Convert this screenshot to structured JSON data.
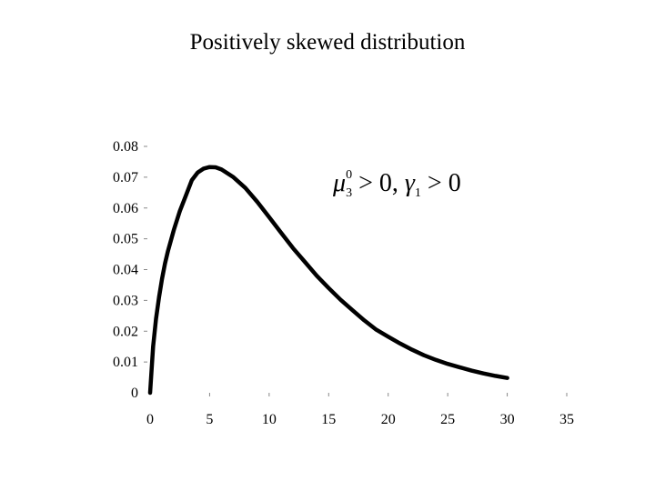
{
  "chart_data": {
    "type": "line",
    "title": "Positively skewed distribution",
    "xlabel": "",
    "ylabel": "",
    "xlim": [
      0,
      35
    ],
    "ylim": [
      0,
      0.08
    ],
    "x_ticks": [
      "0",
      "5",
      "10",
      "15",
      "20",
      "25",
      "30",
      "35"
    ],
    "y_ticks": [
      "0",
      "0.01",
      "0.02",
      "0.03",
      "0.04",
      "0.05",
      "0.06",
      "0.07",
      "0.08"
    ],
    "grid": false,
    "annotation": {
      "mu": "μ",
      "mu_sub": "3",
      "mu_sup": "0",
      "rest1": " > 0, ",
      "gamma": "γ",
      "gamma_sub": "1",
      "rest2": " > 0"
    },
    "series": [
      {
        "x": [
          0,
          0.25,
          0.5,
          0.75,
          1,
          1.25,
          1.5,
          2,
          2.5,
          3,
          3.5,
          4,
          4.5,
          5,
          5.5,
          6,
          7,
          8,
          9,
          10,
          11,
          12,
          13,
          14,
          15,
          16,
          17,
          18,
          19,
          20,
          21,
          22,
          23,
          24,
          25,
          26,
          27,
          28,
          29,
          30
        ],
        "y": [
          0,
          0.015,
          0.024,
          0.031,
          0.037,
          0.042,
          0.046,
          0.053,
          0.059,
          0.064,
          0.069,
          0.0715,
          0.0728,
          0.0733,
          0.0732,
          0.0725,
          0.07,
          0.0665,
          0.062,
          0.057,
          0.052,
          0.047,
          0.0425,
          0.038,
          0.034,
          0.0302,
          0.0268,
          0.0235,
          0.0205,
          0.0182,
          0.016,
          0.014,
          0.0122,
          0.0107,
          0.0094,
          0.0083,
          0.0072,
          0.0063,
          0.0055,
          0.0048
        ]
      }
    ]
  }
}
